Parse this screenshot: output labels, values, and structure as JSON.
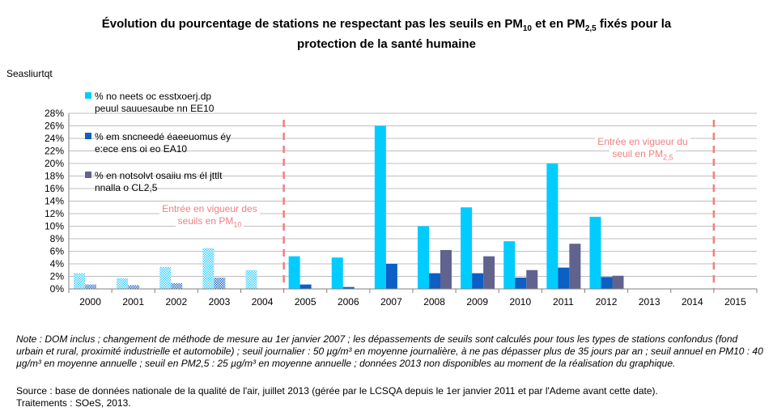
{
  "title_line1": "Évolution du pourcentage de stations ne respectant pas les seuils en PM",
  "title_sub10": "10",
  "title_mid": " et  en PM",
  "title_sub25": "2,5",
  "title_end": " fixés pour la",
  "title_line2": "protection de la santé humaine",
  "ylabel": "Seasliurtqt",
  "legend": [
    {
      "line1": "% no neets oc esstxoerj.dp",
      "line2": "peuul sauuesaube nn EE10"
    },
    {
      "line1": "% em sncneedé éaeeuomus éy",
      "line2": "e:ece ens oi eo EA10"
    },
    {
      "line1": "% en notsolvt osaiiu ms él jttlt",
      "line2": "nnalla  o CL2,5"
    }
  ],
  "annotations": {
    "pm10_line1": "Entrée en vigueur des",
    "pm10_line2": "seuils en PM",
    "pm10_sub": "10",
    "pm25_line1": "Entrée en vigueur du",
    "pm25_line2": "seuil en PM",
    "pm25_sub": "2,5"
  },
  "note_text": "Note : DOM inclus ; changement de méthode de mesure au 1er janvier 2007 ; les dépassements de seuils sont calculés pour tous les types de stations confondus (fond urbain et rural, proximité industrielle et automobile) ; seuil journalier : 50 µg/m³ en moyenne journalière, à ne pas dépasser plus de 35 jours par an ; seuil annuel en PM10 : 40 µg/m³ en moyenne annuelle ; seuil en PM2,5 : 25 µg/m³ en moyenne annuelle ; données 2013 non disponibles au moment de la réalisation du graphique.",
  "source_text": "Source : base de données nationale de la qualité de l'air, juillet 2013 (gérée par le LCSQA depuis le 1er janvier 2011 et par l'Ademe avant cette date).",
  "treatment_text": "Traitements : SOeS, 2013.",
  "colors": {
    "series1": "#00ccff",
    "series2": "#0b5fc5",
    "series3": "#62628f",
    "grid": "#bfbfbf",
    "annotation": "#f07f7f"
  },
  "chart_data": {
    "type": "bar",
    "categories": [
      "2000",
      "2001",
      "2002",
      "2003",
      "2004",
      "2005",
      "2006",
      "2007",
      "2008",
      "2009",
      "2010",
      "2011",
      "2012",
      "2013",
      "2014",
      "2015"
    ],
    "series": [
      {
        "name": "% no neets oc esstxoerj.dp peuul sauuesaube nn EE10",
        "values": [
          2.5,
          1.7,
          3.5,
          6.5,
          3.0,
          5.2,
          5.0,
          26.0,
          10.0,
          13.0,
          7.6,
          20.0,
          11.5,
          null,
          null,
          null
        ]
      },
      {
        "name": "% em sncneedé éaeeuomus éy e:ece ens oi eo EA10",
        "values": [
          0.7,
          0.6,
          0.9,
          1.8,
          null,
          0.7,
          0.3,
          4.0,
          2.5,
          2.5,
          1.8,
          3.4,
          1.9,
          null,
          null,
          null
        ]
      },
      {
        "name": "% en notsolvt osaiiu ms él jttlt nnalla  o CL2,5",
        "values": [
          null,
          null,
          null,
          null,
          null,
          null,
          null,
          null,
          6.2,
          5.2,
          3.0,
          7.2,
          2.1,
          null,
          null,
          null
        ]
      }
    ],
    "hatched_before": "2005",
    "ylim": [
      0,
      28
    ],
    "yticks": [
      "0%",
      "2%",
      "4%",
      "6%",
      "8%",
      "10%",
      "12%",
      "14%",
      "16%",
      "18%",
      "20%",
      "22%",
      "24%",
      "26%",
      "28%"
    ],
    "grid": true,
    "legend_position": "top-left",
    "vertical_markers": [
      "2004/2005",
      "2014/2015"
    ]
  }
}
